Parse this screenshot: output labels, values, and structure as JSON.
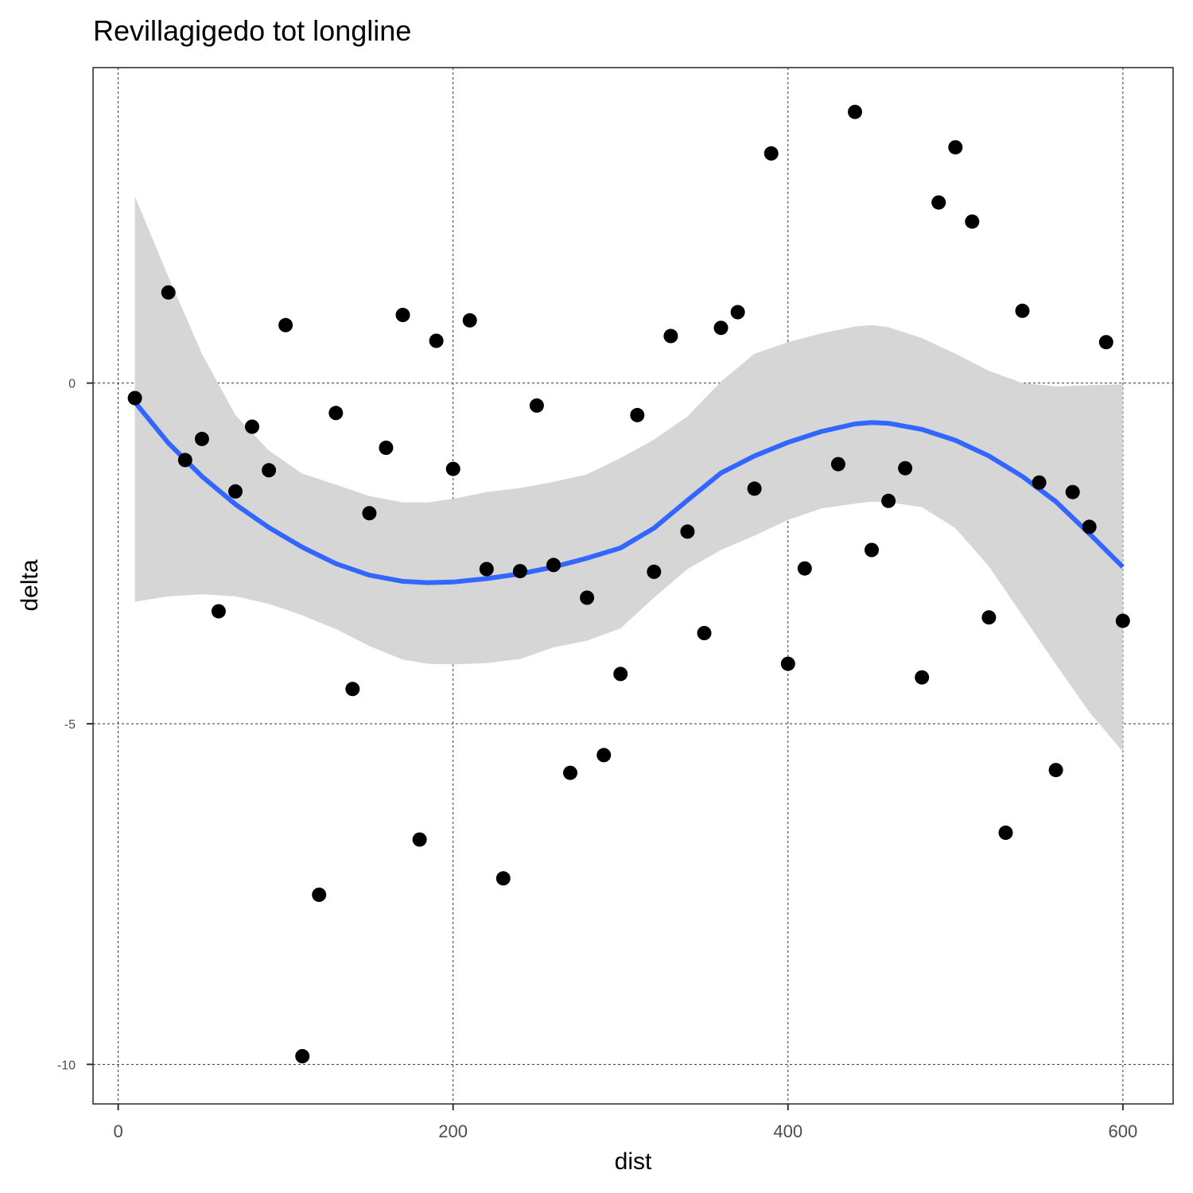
{
  "chart_data": {
    "type": "scatter",
    "title": "Revillagigedo tot longline",
    "xlabel": "dist",
    "ylabel": "delta",
    "xlim": [
      -15,
      630
    ],
    "ylim": [
      -10.58,
      4.63
    ],
    "xticks": [
      0,
      200,
      400,
      600
    ],
    "yticks": [
      0,
      -5,
      -10
    ],
    "xtick_labels": [
      "0",
      "200",
      "400",
      "600"
    ],
    "ytick_labels": [
      "0",
      "-5",
      "-10"
    ],
    "grid": true,
    "grid_style": "dashed",
    "colors": {
      "points": "#000000",
      "smooth_line": "#3366ff",
      "confidence_band": "#d6d6d6",
      "grid": "#333333",
      "panel_border": "#333333"
    },
    "points": {
      "x": [
        10,
        30,
        40,
        50,
        60,
        70,
        80,
        90,
        100,
        110,
        120,
        130,
        140,
        150,
        160,
        170,
        180,
        190,
        200,
        210,
        220,
        230,
        240,
        250,
        260,
        270,
        280,
        290,
        300,
        310,
        320,
        330,
        340,
        350,
        360,
        370,
        380,
        390,
        400,
        410,
        430,
        440,
        450,
        460,
        470,
        480,
        490,
        500,
        510,
        520,
        530,
        540,
        550,
        560,
        570,
        580,
        590,
        600
      ],
      "y": [
        -0.22,
        1.33,
        -1.13,
        -0.82,
        -3.35,
        -1.59,
        -0.64,
        -1.28,
        0.85,
        -9.88,
        -7.51,
        -0.44,
        -4.49,
        -1.91,
        -0.95,
        1.0,
        -6.7,
        0.62,
        -1.26,
        0.92,
        -2.73,
        -7.27,
        -2.76,
        -0.33,
        -2.67,
        -5.72,
        -3.15,
        -5.46,
        -4.27,
        -0.47,
        -2.77,
        0.69,
        -2.18,
        -3.67,
        0.81,
        1.04,
        -1.55,
        3.37,
        -4.12,
        -2.72,
        -1.19,
        3.98,
        -2.45,
        -1.73,
        -1.25,
        -4.32,
        2.65,
        3.46,
        2.37,
        -3.44,
        -6.6,
        1.06,
        -1.46,
        -5.68,
        -1.6,
        -2.11,
        0.6,
        -3.49
      ]
    },
    "smooth": {
      "method": "loess",
      "x": [
        10,
        30,
        50,
        70,
        90,
        110,
        130,
        150,
        170,
        185,
        200,
        220,
        240,
        260,
        280,
        300,
        320,
        340,
        360,
        380,
        400,
        420,
        440,
        450,
        460,
        480,
        500,
        520,
        540,
        560,
        580,
        600
      ],
      "y": [
        -0.28,
        -0.88,
        -1.37,
        -1.78,
        -2.12,
        -2.41,
        -2.65,
        -2.82,
        -2.91,
        -2.93,
        -2.92,
        -2.87,
        -2.8,
        -2.7,
        -2.57,
        -2.42,
        -2.13,
        -1.72,
        -1.32,
        -1.07,
        -0.87,
        -0.71,
        -0.6,
        -0.58,
        -0.59,
        -0.68,
        -0.84,
        -1.07,
        -1.37,
        -1.74,
        -2.21,
        -2.7
      ],
      "ymin": [
        -3.21,
        -3.13,
        -3.1,
        -3.13,
        -3.24,
        -3.41,
        -3.61,
        -3.86,
        -4.06,
        -4.12,
        -4.13,
        -4.11,
        -4.05,
        -3.88,
        -3.78,
        -3.6,
        -3.15,
        -2.73,
        -2.45,
        -2.24,
        -2.01,
        -1.84,
        -1.77,
        -1.74,
        -1.75,
        -1.82,
        -2.13,
        -2.69,
        -3.41,
        -4.13,
        -4.83,
        -5.41
      ],
      "ymax": [
        2.74,
        1.56,
        0.43,
        -0.47,
        -0.99,
        -1.33,
        -1.49,
        -1.66,
        -1.75,
        -1.75,
        -1.7,
        -1.6,
        -1.54,
        -1.45,
        -1.34,
        -1.1,
        -0.83,
        -0.49,
        0.02,
        0.43,
        0.6,
        0.73,
        0.83,
        0.85,
        0.82,
        0.66,
        0.43,
        0.18,
        0.0,
        -0.05,
        -0.03,
        -0.02
      ]
    }
  }
}
